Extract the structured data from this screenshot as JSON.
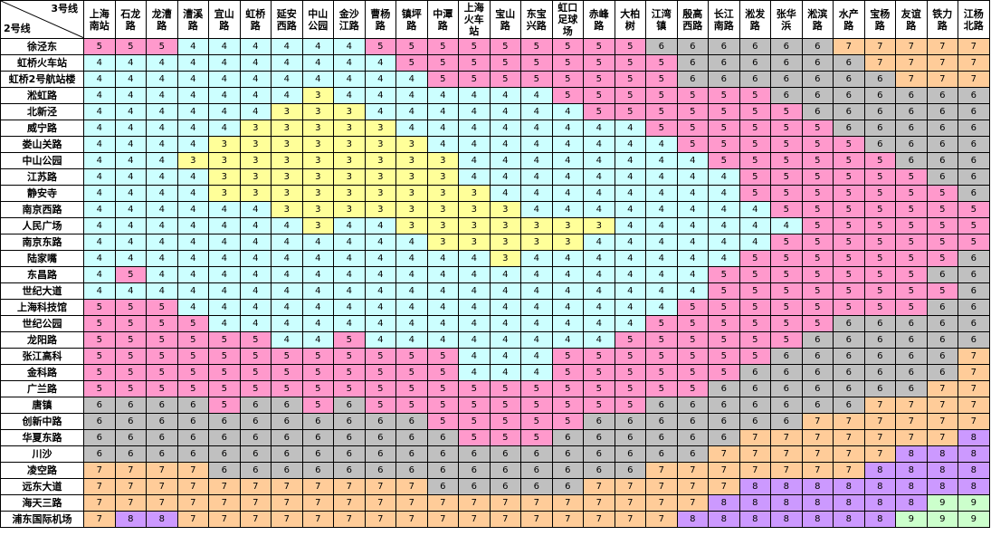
{
  "corner": {
    "column_axis": "3号线",
    "row_axis": "2号线"
  },
  "columns": [
    "上海南站",
    "石龙路",
    "龙漕路",
    "漕溪路",
    "宜山路",
    "虹桥路",
    "延安西路",
    "中山公园",
    "金沙江路",
    "曹杨路",
    "镇坪路",
    "中潭路",
    "上海火车站",
    "宝山路",
    "东宝兴路",
    "虹口足球场",
    "赤峰路",
    "大柏树",
    "江湾镇",
    "殷高西路",
    "长江南路",
    "淞发路",
    "张华浜",
    "淞滨路",
    "水产路",
    "宝杨路",
    "友谊路",
    "铁力路",
    "江杨北路"
  ],
  "rows": [
    {
      "name": "徐泾东",
      "values": [
        5,
        5,
        5,
        4,
        4,
        4,
        4,
        4,
        4,
        5,
        5,
        5,
        5,
        5,
        5,
        5,
        5,
        5,
        6,
        6,
        6,
        6,
        6,
        6,
        7,
        7,
        7,
        7,
        7
      ]
    },
    {
      "name": "虹桥火车站",
      "values": [
        4,
        4,
        4,
        4,
        4,
        4,
        4,
        4,
        4,
        4,
        5,
        5,
        5,
        5,
        5,
        5,
        5,
        5,
        5,
        6,
        6,
        6,
        6,
        6,
        6,
        7,
        7,
        7,
        7
      ]
    },
    {
      "name": "虹桥2号航站楼",
      "values": [
        4,
        4,
        4,
        4,
        4,
        4,
        4,
        4,
        4,
        4,
        4,
        5,
        5,
        5,
        5,
        5,
        5,
        5,
        5,
        6,
        6,
        6,
        6,
        6,
        6,
        6,
        7,
        7,
        7
      ]
    },
    {
      "name": "淞虹路",
      "values": [
        4,
        4,
        4,
        4,
        4,
        4,
        4,
        3,
        4,
        4,
        4,
        4,
        4,
        4,
        4,
        5,
        5,
        5,
        5,
        5,
        5,
        5,
        6,
        6,
        6,
        6,
        6,
        6,
        6
      ]
    },
    {
      "name": "北新泾",
      "values": [
        4,
        4,
        4,
        4,
        4,
        4,
        3,
        3,
        3,
        4,
        4,
        4,
        4,
        4,
        4,
        4,
        5,
        5,
        5,
        5,
        5,
        5,
        5,
        6,
        6,
        6,
        6,
        6,
        6
      ]
    },
    {
      "name": "威宁路",
      "values": [
        4,
        4,
        4,
        4,
        4,
        3,
        3,
        3,
        3,
        3,
        4,
        4,
        4,
        4,
        4,
        4,
        4,
        4,
        5,
        5,
        5,
        5,
        5,
        5,
        6,
        6,
        6,
        6,
        6
      ]
    },
    {
      "name": "娄山关路",
      "values": [
        4,
        4,
        4,
        4,
        3,
        3,
        3,
        3,
        3,
        3,
        3,
        4,
        4,
        4,
        4,
        4,
        4,
        4,
        4,
        5,
        5,
        5,
        5,
        5,
        5,
        6,
        6,
        6,
        6
      ]
    },
    {
      "name": "中山公园",
      "values": [
        4,
        4,
        4,
        3,
        3,
        3,
        3,
        3,
        3,
        3,
        3,
        3,
        4,
        4,
        4,
        4,
        4,
        4,
        4,
        4,
        5,
        5,
        5,
        5,
        5,
        5,
        6,
        6,
        6
      ]
    },
    {
      "name": "江苏路",
      "values": [
        4,
        4,
        4,
        4,
        3,
        3,
        3,
        3,
        3,
        3,
        3,
        3,
        4,
        4,
        4,
        4,
        4,
        4,
        4,
        4,
        4,
        5,
        5,
        5,
        5,
        5,
        5,
        6,
        6
      ]
    },
    {
      "name": "静安寺",
      "values": [
        4,
        4,
        4,
        4,
        3,
        3,
        3,
        3,
        3,
        3,
        3,
        3,
        3,
        4,
        4,
        4,
        4,
        4,
        4,
        4,
        4,
        5,
        5,
        5,
        5,
        5,
        5,
        5,
        6
      ]
    },
    {
      "name": "南京西路",
      "values": [
        4,
        4,
        4,
        4,
        4,
        4,
        3,
        3,
        3,
        3,
        3,
        3,
        3,
        3,
        4,
        4,
        4,
        4,
        4,
        4,
        4,
        4,
        5,
        5,
        5,
        5,
        5,
        5,
        5
      ]
    },
    {
      "name": "人民广场",
      "values": [
        4,
        4,
        4,
        4,
        4,
        4,
        4,
        3,
        4,
        4,
        3,
        3,
        3,
        3,
        3,
        3,
        3,
        4,
        4,
        4,
        4,
        4,
        4,
        5,
        5,
        5,
        5,
        5,
        5
      ]
    },
    {
      "name": "南京东路",
      "values": [
        4,
        4,
        4,
        4,
        4,
        4,
        4,
        4,
        4,
        4,
        4,
        3,
        3,
        3,
        3,
        3,
        4,
        4,
        4,
        4,
        4,
        4,
        5,
        5,
        5,
        5,
        5,
        5,
        5
      ]
    },
    {
      "name": "陆家嘴",
      "values": [
        4,
        4,
        4,
        4,
        4,
        4,
        4,
        4,
        4,
        4,
        4,
        4,
        4,
        3,
        4,
        4,
        4,
        4,
        4,
        4,
        4,
        5,
        5,
        5,
        5,
        5,
        5,
        5,
        6
      ]
    },
    {
      "name": "东昌路",
      "values": [
        4,
        5,
        4,
        4,
        4,
        4,
        4,
        4,
        4,
        4,
        4,
        4,
        4,
        4,
        4,
        4,
        4,
        4,
        4,
        4,
        5,
        5,
        5,
        5,
        5,
        5,
        5,
        6,
        6
      ]
    },
    {
      "name": "世纪大道",
      "values": [
        4,
        4,
        4,
        4,
        4,
        4,
        4,
        4,
        4,
        4,
        4,
        4,
        4,
        4,
        4,
        4,
        4,
        4,
        4,
        4,
        5,
        5,
        5,
        5,
        5,
        5,
        5,
        5,
        6
      ]
    },
    {
      "name": "上海科技馆",
      "values": [
        5,
        5,
        5,
        4,
        4,
        4,
        4,
        4,
        4,
        4,
        4,
        4,
        4,
        4,
        4,
        4,
        4,
        4,
        4,
        5,
        5,
        5,
        5,
        5,
        5,
        5,
        5,
        6,
        6
      ]
    },
    {
      "name": "世纪公园",
      "values": [
        5,
        5,
        5,
        5,
        4,
        4,
        4,
        4,
        4,
        4,
        4,
        4,
        4,
        4,
        4,
        4,
        4,
        4,
        5,
        5,
        5,
        5,
        5,
        5,
        6,
        6,
        6,
        6,
        6
      ]
    },
    {
      "name": "龙阳路",
      "values": [
        5,
        5,
        5,
        5,
        5,
        5,
        4,
        4,
        5,
        4,
        4,
        4,
        4,
        4,
        4,
        4,
        4,
        5,
        5,
        5,
        5,
        5,
        5,
        6,
        6,
        6,
        6,
        6,
        6
      ]
    },
    {
      "name": "张江高科",
      "values": [
        5,
        5,
        5,
        5,
        5,
        5,
        5,
        5,
        5,
        5,
        5,
        5,
        4,
        4,
        4,
        5,
        5,
        5,
        5,
        5,
        5,
        5,
        6,
        6,
        6,
        6,
        6,
        6,
        7
      ]
    },
    {
      "name": "金科路",
      "values": [
        5,
        5,
        5,
        5,
        5,
        5,
        5,
        5,
        5,
        5,
        5,
        5,
        4,
        4,
        4,
        5,
        5,
        5,
        5,
        5,
        5,
        6,
        6,
        6,
        6,
        6,
        6,
        6,
        7
      ]
    },
    {
      "name": "广兰路",
      "values": [
        5,
        5,
        5,
        5,
        5,
        5,
        5,
        5,
        5,
        5,
        5,
        5,
        5,
        5,
        5,
        5,
        5,
        5,
        5,
        5,
        6,
        6,
        6,
        6,
        6,
        6,
        6,
        7,
        7
      ]
    },
    {
      "name": "唐镇",
      "values": [
        6,
        6,
        6,
        6,
        5,
        6,
        6,
        5,
        6,
        5,
        5,
        5,
        5,
        5,
        5,
        5,
        5,
        5,
        6,
        6,
        6,
        6,
        6,
        6,
        6,
        7,
        7,
        7,
        7
      ]
    },
    {
      "name": "创新中路",
      "values": [
        6,
        6,
        6,
        6,
        6,
        6,
        6,
        6,
        6,
        6,
        6,
        5,
        5,
        5,
        5,
        5,
        6,
        6,
        6,
        6,
        6,
        6,
        6,
        7,
        7,
        7,
        7,
        7,
        7
      ]
    },
    {
      "name": "华夏东路",
      "values": [
        6,
        6,
        6,
        6,
        6,
        6,
        6,
        6,
        6,
        6,
        6,
        6,
        5,
        5,
        5,
        6,
        6,
        6,
        6,
        6,
        6,
        7,
        7,
        7,
        7,
        7,
        7,
        7,
        8
      ]
    },
    {
      "name": "川沙",
      "values": [
        6,
        6,
        6,
        6,
        6,
        6,
        6,
        6,
        6,
        6,
        6,
        6,
        6,
        6,
        6,
        6,
        6,
        6,
        6,
        6,
        7,
        7,
        7,
        7,
        7,
        7,
        8,
        8,
        8
      ]
    },
    {
      "name": "凌空路",
      "values": [
        7,
        7,
        7,
        7,
        6,
        6,
        6,
        6,
        6,
        6,
        6,
        6,
        6,
        6,
        6,
        6,
        6,
        6,
        7,
        7,
        7,
        7,
        7,
        7,
        7,
        8,
        8,
        8,
        8
      ]
    },
    {
      "name": "远东大道",
      "values": [
        7,
        7,
        7,
        7,
        7,
        7,
        7,
        7,
        7,
        7,
        7,
        6,
        6,
        6,
        6,
        6,
        7,
        7,
        7,
        7,
        7,
        8,
        8,
        8,
        8,
        8,
        8,
        8,
        8
      ]
    },
    {
      "name": "海天三路",
      "values": [
        7,
        7,
        7,
        7,
        7,
        7,
        7,
        7,
        7,
        7,
        7,
        7,
        7,
        7,
        7,
        7,
        7,
        7,
        7,
        7,
        8,
        8,
        8,
        8,
        8,
        8,
        8,
        9,
        9
      ]
    },
    {
      "name": "浦东国际机场",
      "values": [
        7,
        8,
        8,
        7,
        7,
        7,
        7,
        7,
        7,
        7,
        7,
        7,
        7,
        7,
        7,
        7,
        7,
        7,
        7,
        8,
        8,
        8,
        8,
        8,
        8,
        8,
        9,
        9,
        9
      ]
    }
  ],
  "colors": {
    "3": "#ffff99",
    "4": "#ccffff",
    "5": "#ff99cc",
    "6": "#c0c0c0",
    "7": "#ffcc99",
    "8": "#cc99ff",
    "9": "#ccffcc"
  }
}
